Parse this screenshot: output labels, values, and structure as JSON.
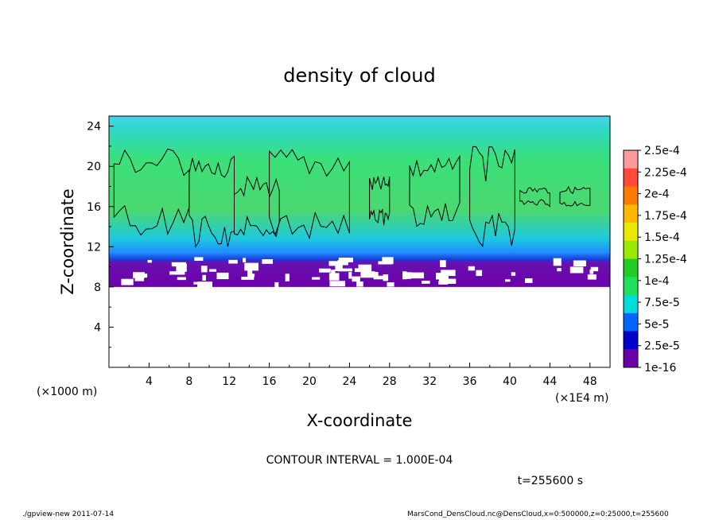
{
  "chart_data": {
    "type": "heatmap",
    "title": "density of cloud",
    "xlabel": "X-coordinate",
    "ylabel": "Z-coordinate",
    "x_unit_left": "(×1000 m)",
    "x_unit_right": "(×1E4 m)",
    "xlim": [
      0,
      50
    ],
    "ylim": [
      0,
      25
    ],
    "x_ticks": [
      "4",
      "8",
      "12",
      "16",
      "20",
      "24",
      "28",
      "32",
      "36",
      "40",
      "44",
      "48"
    ],
    "y_ticks": [
      "4",
      "8",
      "12",
      "16",
      "20",
      "24"
    ],
    "colorbar_labels": [
      "2.5e-4",
      "2.25e-4",
      "2e-4",
      "1.75e-4",
      "1.5e-4",
      "1.25e-4",
      "1e-4",
      "7.5e-5",
      "5e-5",
      "2.5e-5",
      "1e-16"
    ],
    "colorbar_colors": [
      "#ff9a9a",
      "#ff4a3a",
      "#ff7a00",
      "#ffb800",
      "#e8e800",
      "#9aea00",
      "#22cc22",
      "#1ee05a",
      "#00dcdc",
      "#0066ff",
      "#0000cc",
      "#6a00aa"
    ],
    "contour_interval": "CONTOUR INTERVAL = 1.000E-04",
    "time": "t=255600 s",
    "footer_left": "./gpview-new  2011-07-14",
    "footer_right": "MarsCond_DensCloud.nc@DensCloud,x=0:500000,z=0:25000,t=255600",
    "cloud_base_z": 8,
    "cloud_top_z": 25,
    "contour_cells": [
      {
        "x0": 0.5,
        "x1": 8,
        "z0": 13,
        "z1": 22
      },
      {
        "x0": 8,
        "x1": 12.5,
        "z0": 12,
        "z1": 21
      },
      {
        "x0": 12.5,
        "x1": 17,
        "z0": 13,
        "z1": 19
      },
      {
        "x0": 16,
        "x1": 24,
        "z0": 12.5,
        "z1": 22
      },
      {
        "x0": 26,
        "x1": 28,
        "z0": 14,
        "z1": 19
      },
      {
        "x0": 30,
        "x1": 35,
        "z0": 14,
        "z1": 21
      },
      {
        "x0": 36,
        "x1": 40.5,
        "z0": 12,
        "z1": 22
      },
      {
        "x0": 41,
        "x1": 44,
        "z0": 16,
        "z1": 18
      },
      {
        "x0": 45,
        "x1": 48,
        "z0": 16,
        "z1": 18
      }
    ]
  }
}
